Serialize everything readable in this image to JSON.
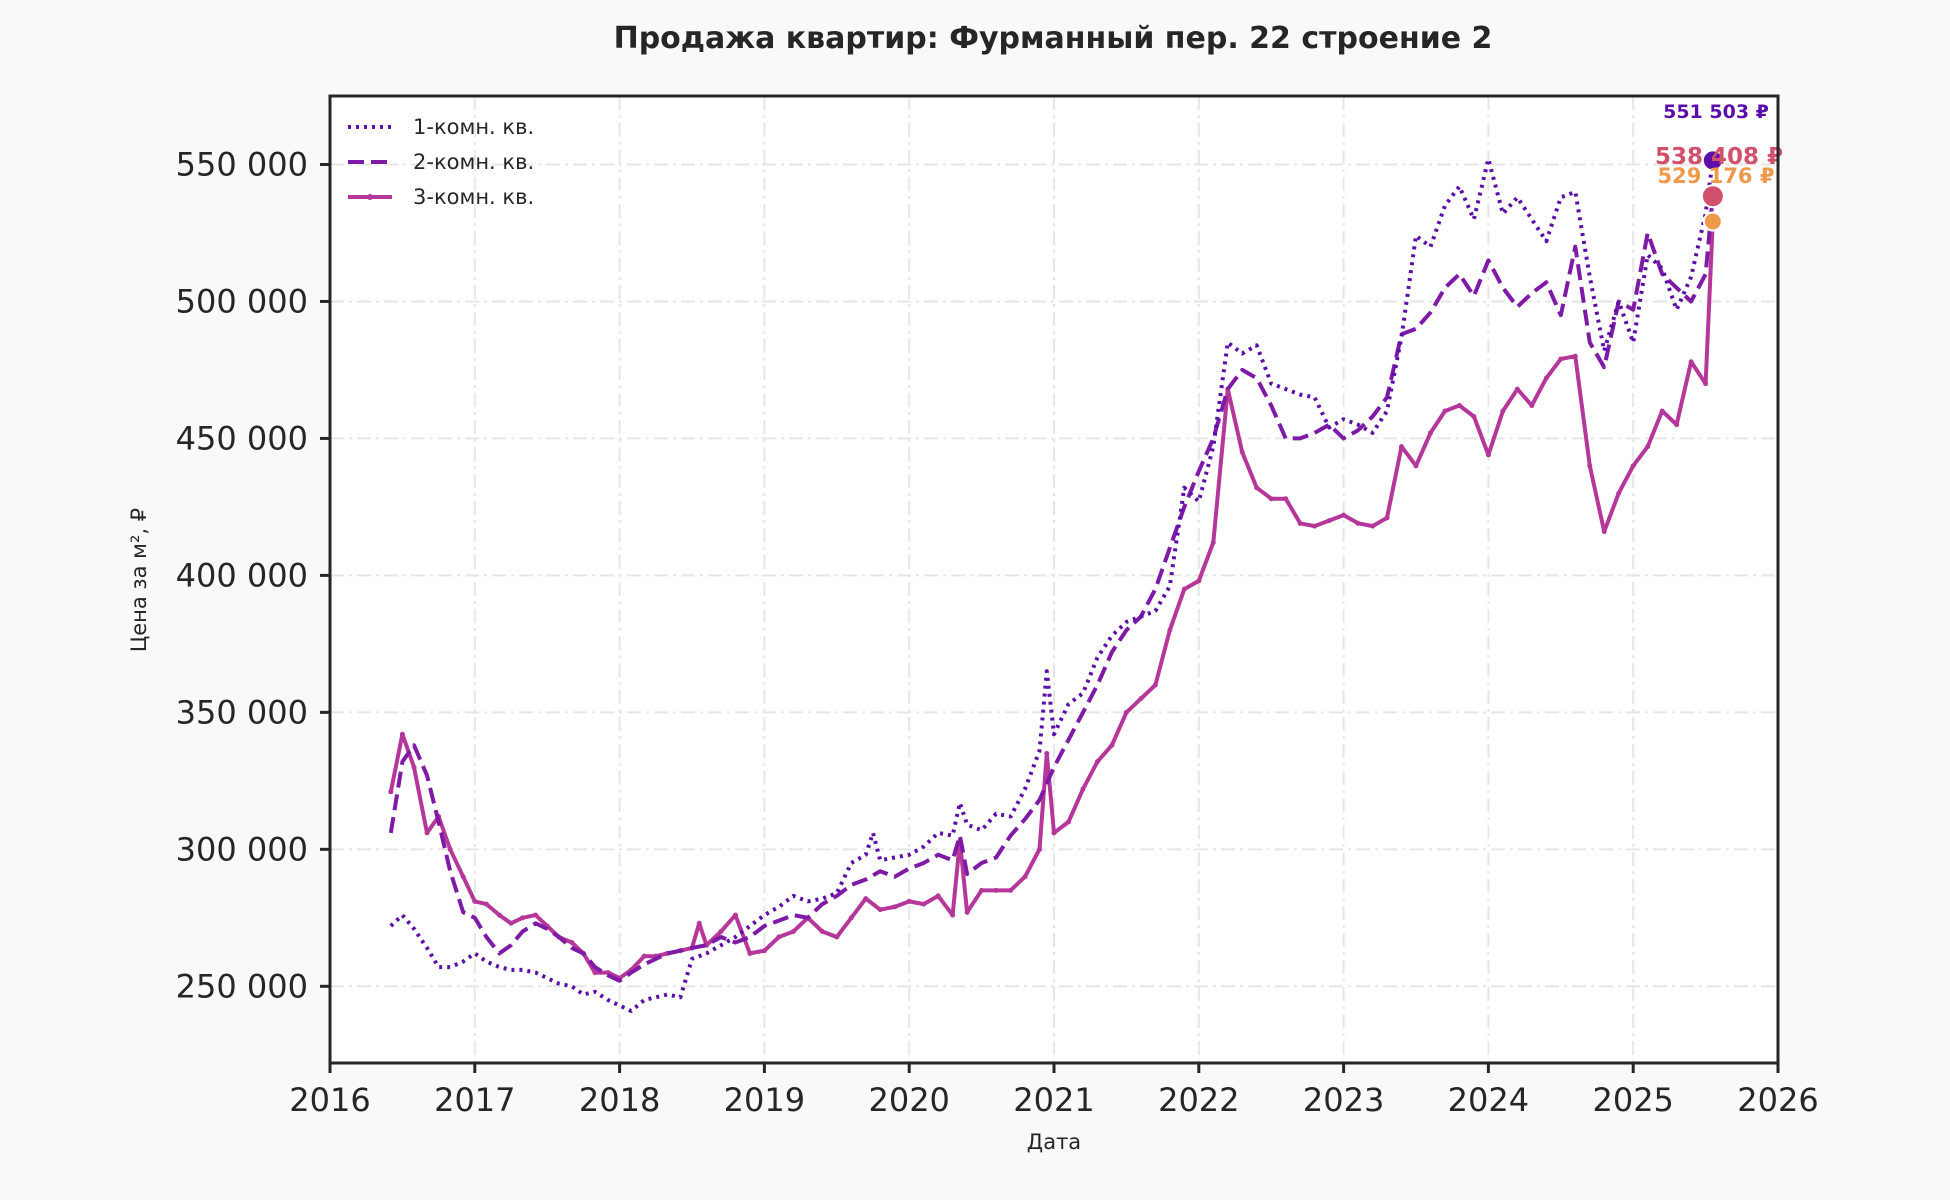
{
  "chart_data": {
    "type": "line",
    "title": "Продажа квартир: Фурманный пер. 22 строение 2",
    "xlabel": "Дата",
    "ylabel": "Цена за м², ₽",
    "xlim": [
      2016,
      2026
    ],
    "ylim": [
      222000,
      575000
    ],
    "x_ticks": [
      "2016",
      "2017",
      "2018",
      "2019",
      "2020",
      "2021",
      "2022",
      "2023",
      "2024",
      "2025",
      "2026"
    ],
    "y_ticks": [
      250000,
      300000,
      350000,
      400000,
      450000,
      500000,
      550000
    ],
    "y_tick_labels": [
      "250 000",
      "300 000",
      "350 000",
      "400 000",
      "450 000",
      "500 000",
      "550 000"
    ],
    "grid": true,
    "legend_position": "upper-left",
    "series": [
      {
        "name": "1-комн. кв.",
        "style": "dotted",
        "color": "#5c0fa8",
        "x": [
          2016.42,
          2016.5,
          2016.58,
          2016.67,
          2016.75,
          2016.83,
          2016.92,
          2017.0,
          2017.08,
          2017.17,
          2017.25,
          2017.33,
          2017.42,
          2017.5,
          2017.58,
          2017.67,
          2017.75,
          2017.83,
          2017.92,
          2018.0,
          2018.08,
          2018.17,
          2018.25,
          2018.33,
          2018.42,
          2018.5,
          2018.6,
          2018.7,
          2018.8,
          2018.9,
          2019.0,
          2019.1,
          2019.2,
          2019.3,
          2019.4,
          2019.5,
          2019.6,
          2019.7,
          2019.75,
          2019.8,
          2019.9,
          2020.0,
          2020.1,
          2020.2,
          2020.3,
          2020.35,
          2020.4,
          2020.5,
          2020.6,
          2020.7,
          2020.8,
          2020.9,
          2020.95,
          2021.0,
          2021.1,
          2021.2,
          2021.3,
          2021.4,
          2021.5,
          2021.6,
          2021.7,
          2021.8,
          2021.9,
          2022.0,
          2022.1,
          2022.2,
          2022.3,
          2022.4,
          2022.5,
          2022.6,
          2022.7,
          2022.8,
          2022.9,
          2023.0,
          2023.1,
          2023.2,
          2023.3,
          2023.4,
          2023.5,
          2023.6,
          2023.7,
          2023.8,
          2023.9,
          2024.0,
          2024.1,
          2024.2,
          2024.3,
          2024.4,
          2024.5,
          2024.6,
          2024.7,
          2024.8,
          2024.9,
          2025.0,
          2025.1,
          2025.2,
          2025.3,
          2025.4,
          2025.5,
          2025.55
        ],
        "y": [
          272000,
          276000,
          271000,
          264000,
          257000,
          257000,
          259000,
          262000,
          259000,
          257000,
          256000,
          256000,
          255000,
          253000,
          251000,
          250000,
          247000,
          248000,
          245000,
          243000,
          241000,
          245000,
          246000,
          247000,
          246000,
          260000,
          262000,
          265000,
          268000,
          272000,
          276000,
          279000,
          283000,
          281000,
          282000,
          284000,
          295000,
          298000,
          306000,
          296000,
          297000,
          298000,
          301000,
          306000,
          305000,
          317000,
          309000,
          307000,
          313000,
          312000,
          322000,
          336000,
          365000,
          342000,
          353000,
          357000,
          370000,
          378000,
          383000,
          385000,
          387000,
          396000,
          432000,
          427000,
          447000,
          485000,
          481000,
          484000,
          470000,
          468000,
          466000,
          465000,
          454000,
          457000,
          455000,
          452000,
          460000,
          487000,
          524000,
          520000,
          535000,
          542000,
          530000,
          552000,
          532000,
          538000,
          530000,
          522000,
          538000,
          540000,
          509000,
          482000,
          500000,
          485000,
          517000,
          512000,
          497000,
          509000,
          532000,
          551503
        ]
      },
      {
        "name": "2-комн. кв.",
        "style": "dashed",
        "color": "#7e1aa6",
        "x": [
          2016.42,
          2016.5,
          2016.58,
          2016.67,
          2016.75,
          2016.83,
          2016.92,
          2017.0,
          2017.08,
          2017.17,
          2017.25,
          2017.33,
          2017.42,
          2017.5,
          2017.58,
          2017.67,
          2017.75,
          2017.83,
          2017.92,
          2018.0,
          2018.08,
          2018.17,
          2018.25,
          2018.33,
          2018.42,
          2018.5,
          2018.6,
          2018.7,
          2018.8,
          2018.9,
          2019.0,
          2019.1,
          2019.2,
          2019.3,
          2019.4,
          2019.5,
          2019.6,
          2019.7,
          2019.8,
          2019.9,
          2020.0,
          2020.1,
          2020.2,
          2020.3,
          2020.35,
          2020.4,
          2020.5,
          2020.6,
          2020.7,
          2020.8,
          2020.9,
          2021.0,
          2021.1,
          2021.2,
          2021.3,
          2021.4,
          2021.5,
          2021.6,
          2021.7,
          2021.8,
          2021.9,
          2022.0,
          2022.1,
          2022.2,
          2022.3,
          2022.4,
          2022.5,
          2022.6,
          2022.7,
          2022.8,
          2022.9,
          2023.0,
          2023.1,
          2023.2,
          2023.3,
          2023.4,
          2023.5,
          2023.6,
          2023.7,
          2023.8,
          2023.9,
          2024.0,
          2024.1,
          2024.2,
          2024.3,
          2024.4,
          2024.5,
          2024.6,
          2024.7,
          2024.8,
          2024.9,
          2025.0,
          2025.1,
          2025.2,
          2025.3,
          2025.4,
          2025.5,
          2025.55
        ],
        "y": [
          306000,
          332000,
          338000,
          327000,
          310000,
          292000,
          277000,
          275000,
          268000,
          262000,
          265000,
          270000,
          273000,
          271000,
          268000,
          264000,
          262000,
          257000,
          254000,
          252000,
          255000,
          258000,
          260000,
          262000,
          263000,
          264000,
          265000,
          268000,
          266000,
          268000,
          272000,
          274000,
          276000,
          275000,
          280000,
          283000,
          287000,
          289000,
          292000,
          290000,
          293000,
          295000,
          298000,
          296000,
          305000,
          291000,
          295000,
          297000,
          305000,
          311000,
          318000,
          330000,
          340000,
          350000,
          360000,
          372000,
          380000,
          385000,
          395000,
          410000,
          425000,
          438000,
          450000,
          468000,
          475000,
          472000,
          462000,
          450000,
          450000,
          452000,
          455000,
          450000,
          453000,
          458000,
          465000,
          488000,
          490000,
          496000,
          505000,
          510000,
          502000,
          515000,
          505000,
          498000,
          503000,
          507000,
          495000,
          520000,
          485000,
          476000,
          500000,
          497000,
          525000,
          510000,
          505000,
          500000,
          510000,
          538408
        ]
      },
      {
        "name": "3-комн. кв.",
        "style": "solid",
        "color": "#b5379a",
        "x": [
          2016.42,
          2016.5,
          2016.58,
          2016.67,
          2016.75,
          2016.83,
          2016.92,
          2017.0,
          2017.08,
          2017.17,
          2017.25,
          2017.33,
          2017.42,
          2017.5,
          2017.58,
          2017.67,
          2017.75,
          2017.83,
          2017.92,
          2018.0,
          2018.08,
          2018.17,
          2018.25,
          2018.33,
          2018.42,
          2018.5,
          2018.55,
          2018.6,
          2018.7,
          2018.8,
          2018.9,
          2019.0,
          2019.1,
          2019.2,
          2019.3,
          2019.4,
          2019.5,
          2019.6,
          2019.7,
          2019.8,
          2019.9,
          2020.0,
          2020.1,
          2020.2,
          2020.3,
          2020.35,
          2020.4,
          2020.5,
          2020.6,
          2020.7,
          2020.8,
          2020.9,
          2020.95,
          2021.0,
          2021.1,
          2021.2,
          2021.3,
          2021.4,
          2021.5,
          2021.6,
          2021.7,
          2021.8,
          2021.9,
          2022.0,
          2022.1,
          2022.2,
          2022.3,
          2022.4,
          2022.5,
          2022.6,
          2022.7,
          2022.8,
          2022.9,
          2023.0,
          2023.1,
          2023.2,
          2023.3,
          2023.4,
          2023.5,
          2023.6,
          2023.7,
          2023.8,
          2023.9,
          2024.0,
          2024.1,
          2024.2,
          2024.3,
          2024.4,
          2024.5,
          2024.6,
          2024.7,
          2024.8,
          2024.9,
          2025.0,
          2025.1,
          2025.2,
          2025.3,
          2025.4,
          2025.5,
          2025.55
        ],
        "y": [
          321000,
          342000,
          330000,
          306000,
          312000,
          300000,
          290000,
          281000,
          280000,
          276000,
          273000,
          275000,
          276000,
          272000,
          268000,
          266000,
          262000,
          255000,
          255000,
          253000,
          256000,
          261000,
          261000,
          262000,
          263000,
          264000,
          273000,
          265000,
          270000,
          276000,
          262000,
          263000,
          268000,
          270000,
          275000,
          270000,
          268000,
          275000,
          282000,
          278000,
          279000,
          281000,
          280000,
          283000,
          276000,
          303000,
          277000,
          285000,
          285000,
          285000,
          290000,
          300000,
          335000,
          306000,
          310000,
          322000,
          332000,
          338000,
          350000,
          355000,
          360000,
          380000,
          395000,
          398000,
          412000,
          468000,
          445000,
          432000,
          428000,
          428000,
          419000,
          418000,
          420000,
          422000,
          419000,
          418000,
          421000,
          447000,
          440000,
          452000,
          460000,
          462000,
          458000,
          444000,
          460000,
          468000,
          462000,
          472000,
          479000,
          480000,
          440000,
          416000,
          430000,
          440000,
          447000,
          460000,
          455000,
          478000,
          470000,
          529176
        ]
      }
    ],
    "annotations": [
      {
        "label": "551 503 ₽",
        "value": 551503,
        "color": "#5c0fa8"
      },
      {
        "label": "538 408 ₽",
        "value": 538408,
        "color": "#d1506b"
      },
      {
        "label": "529 176 ₽",
        "value": 529176,
        "color": "#ef9a4a"
      }
    ]
  }
}
